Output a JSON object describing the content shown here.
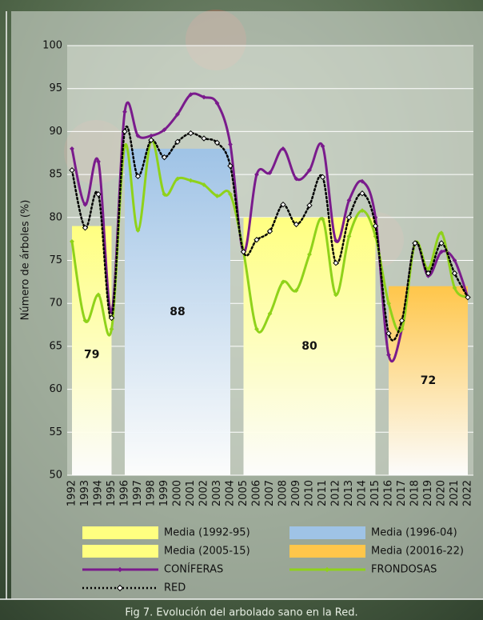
{
  "chart_data": {
    "type": "line",
    "y_label": "Número de árboles (%)",
    "caption": "Fig 7. Evolución del arbolado sano en la Red.",
    "categories": [
      "1992",
      "1993",
      "1994",
      "1995",
      "1996",
      "1997",
      "1998",
      "1999",
      "2000",
      "2001",
      "2002",
      "2003",
      "2004",
      "2005",
      "2006",
      "2007",
      "2008",
      "2009",
      "2010",
      "2011",
      "2012",
      "2013",
      "2014",
      "2015",
      "2016",
      "2017",
      "2018",
      "2019",
      "2020",
      "2021",
      "2022"
    ],
    "ylim": [
      50,
      100
    ],
    "yticks": [
      50,
      55,
      60,
      65,
      70,
      75,
      80,
      85,
      90,
      95,
      100
    ],
    "grid": true,
    "bands": [
      {
        "name": "Media (1992-95)",
        "from": "1992",
        "to": "1995",
        "value": 79,
        "color": "#ffff80"
      },
      {
        "name": "Media (1996-04)",
        "from": "1996",
        "to": "2004",
        "value": 88,
        "color": "#9fc3e6"
      },
      {
        "name": "Media (2005-15)",
        "from": "2005",
        "to": "2015",
        "value": 80,
        "color": "#ffff80"
      },
      {
        "name": "Media (20016-22)",
        "from": "2016",
        "to": "2022",
        "value": 72,
        "color": "#ffc64a"
      }
    ],
    "series": [
      {
        "name": "CONÍFERAS",
        "color": "#7a1b8c",
        "style": "solid",
        "values": [
          88,
          81.5,
          86.5,
          69,
          92.3,
          89.5,
          89.5,
          90.2,
          92,
          94.3,
          94,
          93.3,
          88.5,
          76,
          85,
          85.2,
          88,
          84.5,
          85.5,
          88.3,
          77.3,
          82,
          84.2,
          80,
          64,
          67,
          77,
          73.2,
          76,
          75,
          70.7
        ]
      },
      {
        "name": "FRONDOSAS",
        "color": "#8fd21a",
        "style": "solid",
        "values": [
          77.2,
          68,
          71,
          67,
          88.3,
          78.5,
          89,
          82.7,
          84.5,
          84.3,
          83.8,
          82.5,
          82.7,
          76,
          67,
          68.8,
          72.5,
          71.5,
          75.7,
          79.8,
          71,
          77.8,
          80.8,
          77.8,
          70,
          67,
          77,
          74,
          78.2,
          71.8,
          70.7
        ]
      },
      {
        "name": "RED",
        "color": "#000000",
        "style": "dotted",
        "values": [
          85.5,
          78.8,
          82.7,
          68.3,
          90,
          84.8,
          89,
          87,
          88.8,
          89.8,
          89.2,
          88.7,
          86,
          76,
          77.4,
          78.4,
          81.5,
          79.2,
          81.4,
          84.7,
          74.7,
          80,
          82.8,
          79,
          66.5,
          68,
          77,
          73.5,
          77,
          73.5,
          70.7
        ]
      }
    ]
  }
}
